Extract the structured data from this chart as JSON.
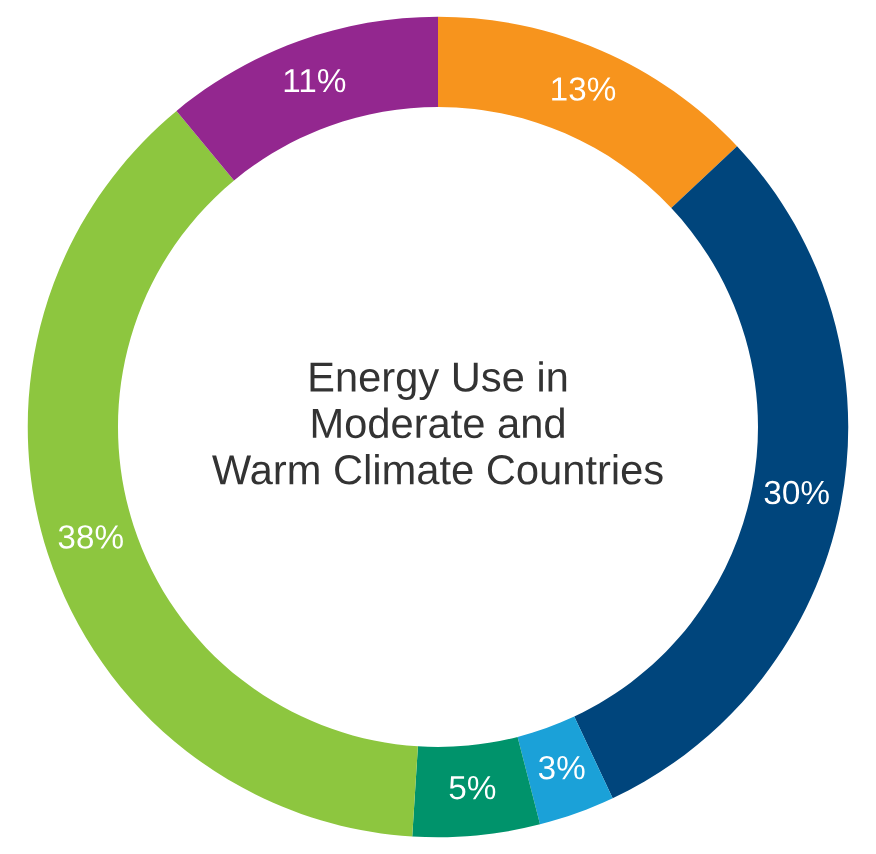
{
  "chart_data": {
    "type": "donut",
    "title": "Energy Use in\nModerate and\nWarm Climate Countries",
    "categories": [
      null,
      null,
      null,
      null,
      null,
      null
    ],
    "values": [
      13,
      30,
      3,
      5,
      38,
      11
    ],
    "colors": [
      "#f7941d",
      "#00457c",
      "#1ba1d8",
      "#00936b",
      "#8dc63f",
      "#93278f"
    ],
    "value_labels": [
      "13%",
      "30%",
      "3%",
      "5%",
      "38%",
      "11%"
    ],
    "legend": false
  }
}
